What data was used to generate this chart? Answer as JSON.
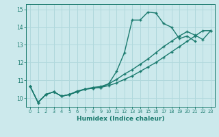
{
  "xlabel": "Humidex (Indice chaleur)",
  "bg_color": "#cce9ec",
  "grid_color": "#b0d8dc",
  "line_color": "#1a7a6e",
  "xlim": [
    -0.5,
    23.5
  ],
  "ylim": [
    9.5,
    15.3
  ],
  "xticks": [
    0,
    1,
    2,
    3,
    4,
    5,
    6,
    7,
    8,
    9,
    10,
    11,
    12,
    13,
    14,
    15,
    16,
    17,
    18,
    19,
    20,
    21,
    22,
    23
  ],
  "yticks": [
    10,
    11,
    12,
    13,
    14,
    15
  ],
  "line1_x": [
    0,
    1,
    2,
    3,
    4,
    5,
    6,
    7,
    8,
    9,
    10,
    11,
    12,
    13,
    14,
    15,
    16,
    17,
    18,
    19,
    20,
    21,
    22,
    23
  ],
  "line1_y": [
    10.65,
    9.75,
    10.2,
    10.35,
    10.1,
    10.2,
    10.35,
    10.5,
    10.55,
    10.6,
    10.7,
    10.85,
    11.05,
    11.25,
    11.5,
    11.75,
    12.0,
    12.3,
    12.6,
    12.9,
    13.2,
    13.5,
    13.8,
    13.8
  ],
  "line2_x": [
    0,
    1,
    2,
    3,
    4,
    5,
    6,
    7,
    8,
    9,
    10,
    11,
    12,
    13,
    14,
    15,
    16,
    17,
    18,
    19,
    20,
    21,
    22,
    23
  ],
  "line2_y": [
    10.65,
    9.75,
    10.2,
    10.35,
    10.1,
    10.2,
    10.4,
    10.5,
    10.6,
    10.65,
    10.8,
    11.05,
    11.35,
    11.6,
    11.9,
    12.2,
    12.55,
    12.9,
    13.2,
    13.5,
    13.75,
    13.55,
    13.3,
    13.8
  ],
  "line3_x": [
    0,
    1,
    2,
    3,
    4,
    5,
    6,
    7,
    8,
    9,
    10,
    11,
    12,
    13,
    14,
    15,
    16,
    17,
    18,
    19,
    20,
    21,
    22,
    23
  ],
  "line3_y": [
    10.65,
    9.75,
    10.2,
    10.35,
    10.1,
    10.2,
    10.35,
    10.5,
    10.55,
    10.6,
    10.8,
    11.5,
    12.55,
    14.4,
    14.4,
    14.85,
    14.8,
    14.2,
    14.0,
    13.35,
    13.5,
    13.2,
    null,
    null
  ],
  "marker": "+",
  "markersize": 3.5,
  "linewidth": 1.0
}
